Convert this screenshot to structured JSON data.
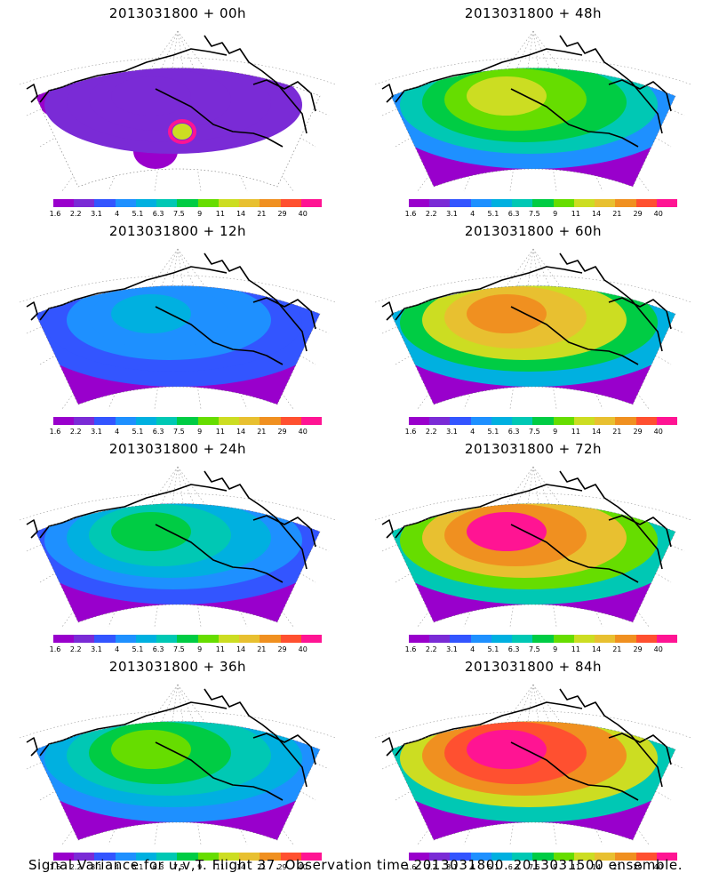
{
  "panels": [
    {
      "title": "2013031800 + 00h",
      "level": 0.06,
      "hotspot": 1
    },
    {
      "title": "2013031800 + 48h",
      "level": 0.55,
      "hotspot": 0
    },
    {
      "title": "2013031800 + 12h",
      "level": 0.25,
      "hotspot": 0
    },
    {
      "title": "2013031800 + 60h",
      "level": 0.68,
      "hotspot": 0
    },
    {
      "title": "2013031800 + 24h",
      "level": 0.38,
      "hotspot": 0
    },
    {
      "title": "2013031800 + 72h",
      "level": 0.78,
      "hotspot": 0
    },
    {
      "title": "2013031800 + 36h",
      "level": 0.47,
      "hotspot": 0
    },
    {
      "title": "2013031800 + 84h",
      "level": 0.86,
      "hotspot": 0
    }
  ],
  "colorbar": {
    "labels": [
      "1.6",
      "2.2",
      "3.1",
      "4",
      "5.1",
      "6.3",
      "7.5",
      "9",
      "11",
      "14",
      "21",
      "29",
      "40"
    ],
    "colors": [
      "#9900cc",
      "#7a2bd6",
      "#3355ff",
      "#1e90ff",
      "#00b0e0",
      "#00c8b4",
      "#00cc44",
      "#66dd00",
      "#ccdd22",
      "#e8c030",
      "#f09020",
      "#ff5030",
      "#ff1493"
    ]
  },
  "footer": "Signal Variance for u,v,T. Flight 37. Observation time 2013031800. 2013031500 ensemble."
}
